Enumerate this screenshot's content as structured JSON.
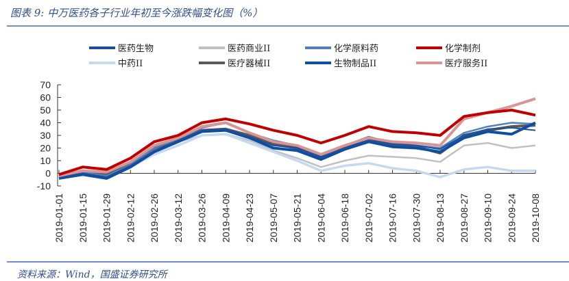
{
  "title": "图表 9:  中万医药各子行业年初至今涨跌幅变化图（%）",
  "source": "资料来源：Wind，国盛证券研究所",
  "chart_data": {
    "type": "line",
    "title": "图表 9:  中万医药各子行业年初至今涨跌幅变化图（%）",
    "xlabel": "",
    "ylabel": "",
    "ylim": [
      -10,
      70
    ],
    "yticks": [
      "70",
      "60",
      "50",
      "40",
      "30",
      "20",
      "10",
      "0",
      "-10"
    ],
    "x": [
      "2019-01-01",
      "2019-01-15",
      "2019-01-29",
      "2019-02-12",
      "2019-02-26",
      "2019-03-12",
      "2019-03-26",
      "2019-04-09",
      "2019-04-23",
      "2019-05-07",
      "2019-05-21",
      "2019-06-04",
      "2019-06-18",
      "2019-07-02",
      "2019-07-16",
      "2019-07-30",
      "2019-08-13",
      "2019-08-27",
      "2019-09-10",
      "2019-09-24",
      "2019-10-08"
    ],
    "legend_position": "top",
    "grid": false,
    "series": [
      {
        "name": "医药商业II",
        "color": "#c0c0c0",
        "values": [
          -2,
          0,
          -2,
          6,
          18,
          25,
          30,
          31,
          26,
          18,
          12,
          5,
          10,
          14,
          13,
          12,
          9,
          22,
          24,
          20,
          22
        ]
      },
      {
        "name": "中药II",
        "color": "#c6d9f0",
        "values": [
          -3,
          0,
          -3,
          5,
          15,
          22,
          30,
          31,
          24,
          17,
          10,
          2,
          6,
          8,
          4,
          2,
          -3,
          3,
          5,
          2,
          2
        ]
      },
      {
        "name": "医疗器械II",
        "color": "#595959",
        "values": [
          -2,
          1,
          -1,
          8,
          20,
          27,
          34,
          35,
          30,
          23,
          20,
          12,
          20,
          26,
          22,
          21,
          16,
          30,
          34,
          37,
          38
        ]
      },
      {
        "name": "化学原料药",
        "color": "#4f81bd",
        "values": [
          -2,
          1,
          -2,
          7,
          20,
          27,
          36,
          40,
          32,
          26,
          22,
          14,
          22,
          29,
          24,
          22,
          20,
          32,
          37,
          40,
          39
        ]
      },
      {
        "name": "生物制品II",
        "color": "#0b4ea2",
        "values": [
          -4,
          -1,
          -4,
          5,
          17,
          25,
          33,
          34,
          28,
          20,
          18,
          11,
          19,
          25,
          21,
          20,
          17,
          28,
          33,
          31,
          40
        ]
      },
      {
        "name": "医药生物",
        "color": "#1f4e99",
        "values": [
          -3,
          0,
          -3,
          6,
          18,
          26,
          34,
          35,
          29,
          22,
          20,
          13,
          20,
          27,
          23,
          22,
          19,
          30,
          35,
          36,
          34
        ]
      },
      {
        "name": "医疗服务II",
        "color": "#d99594",
        "values": [
          -2,
          2,
          1,
          9,
          22,
          28,
          37,
          40,
          32,
          25,
          22,
          15,
          22,
          28,
          25,
          24,
          22,
          43,
          48,
          53,
          59
        ]
      },
      {
        "name": "化学制剂",
        "color": "#c00000",
        "values": [
          -1,
          5,
          3,
          12,
          25,
          30,
          40,
          43,
          39,
          34,
          30,
          24,
          30,
          37,
          33,
          32,
          30,
          45,
          48,
          50,
          46
        ]
      }
    ],
    "legend": [
      {
        "name": "医药生物",
        "color": "#1f4e99"
      },
      {
        "name": "医药商业II",
        "color": "#c0c0c0"
      },
      {
        "name": "化学原料药",
        "color": "#4f81bd"
      },
      {
        "name": "化学制剂",
        "color": "#c00000"
      },
      {
        "name": "中药II",
        "color": "#c6d9f0"
      },
      {
        "name": "医疗器械II",
        "color": "#595959"
      },
      {
        "name": "生物制品II",
        "color": "#0b4ea2"
      },
      {
        "name": "医疗服务II",
        "color": "#d99594"
      }
    ]
  }
}
